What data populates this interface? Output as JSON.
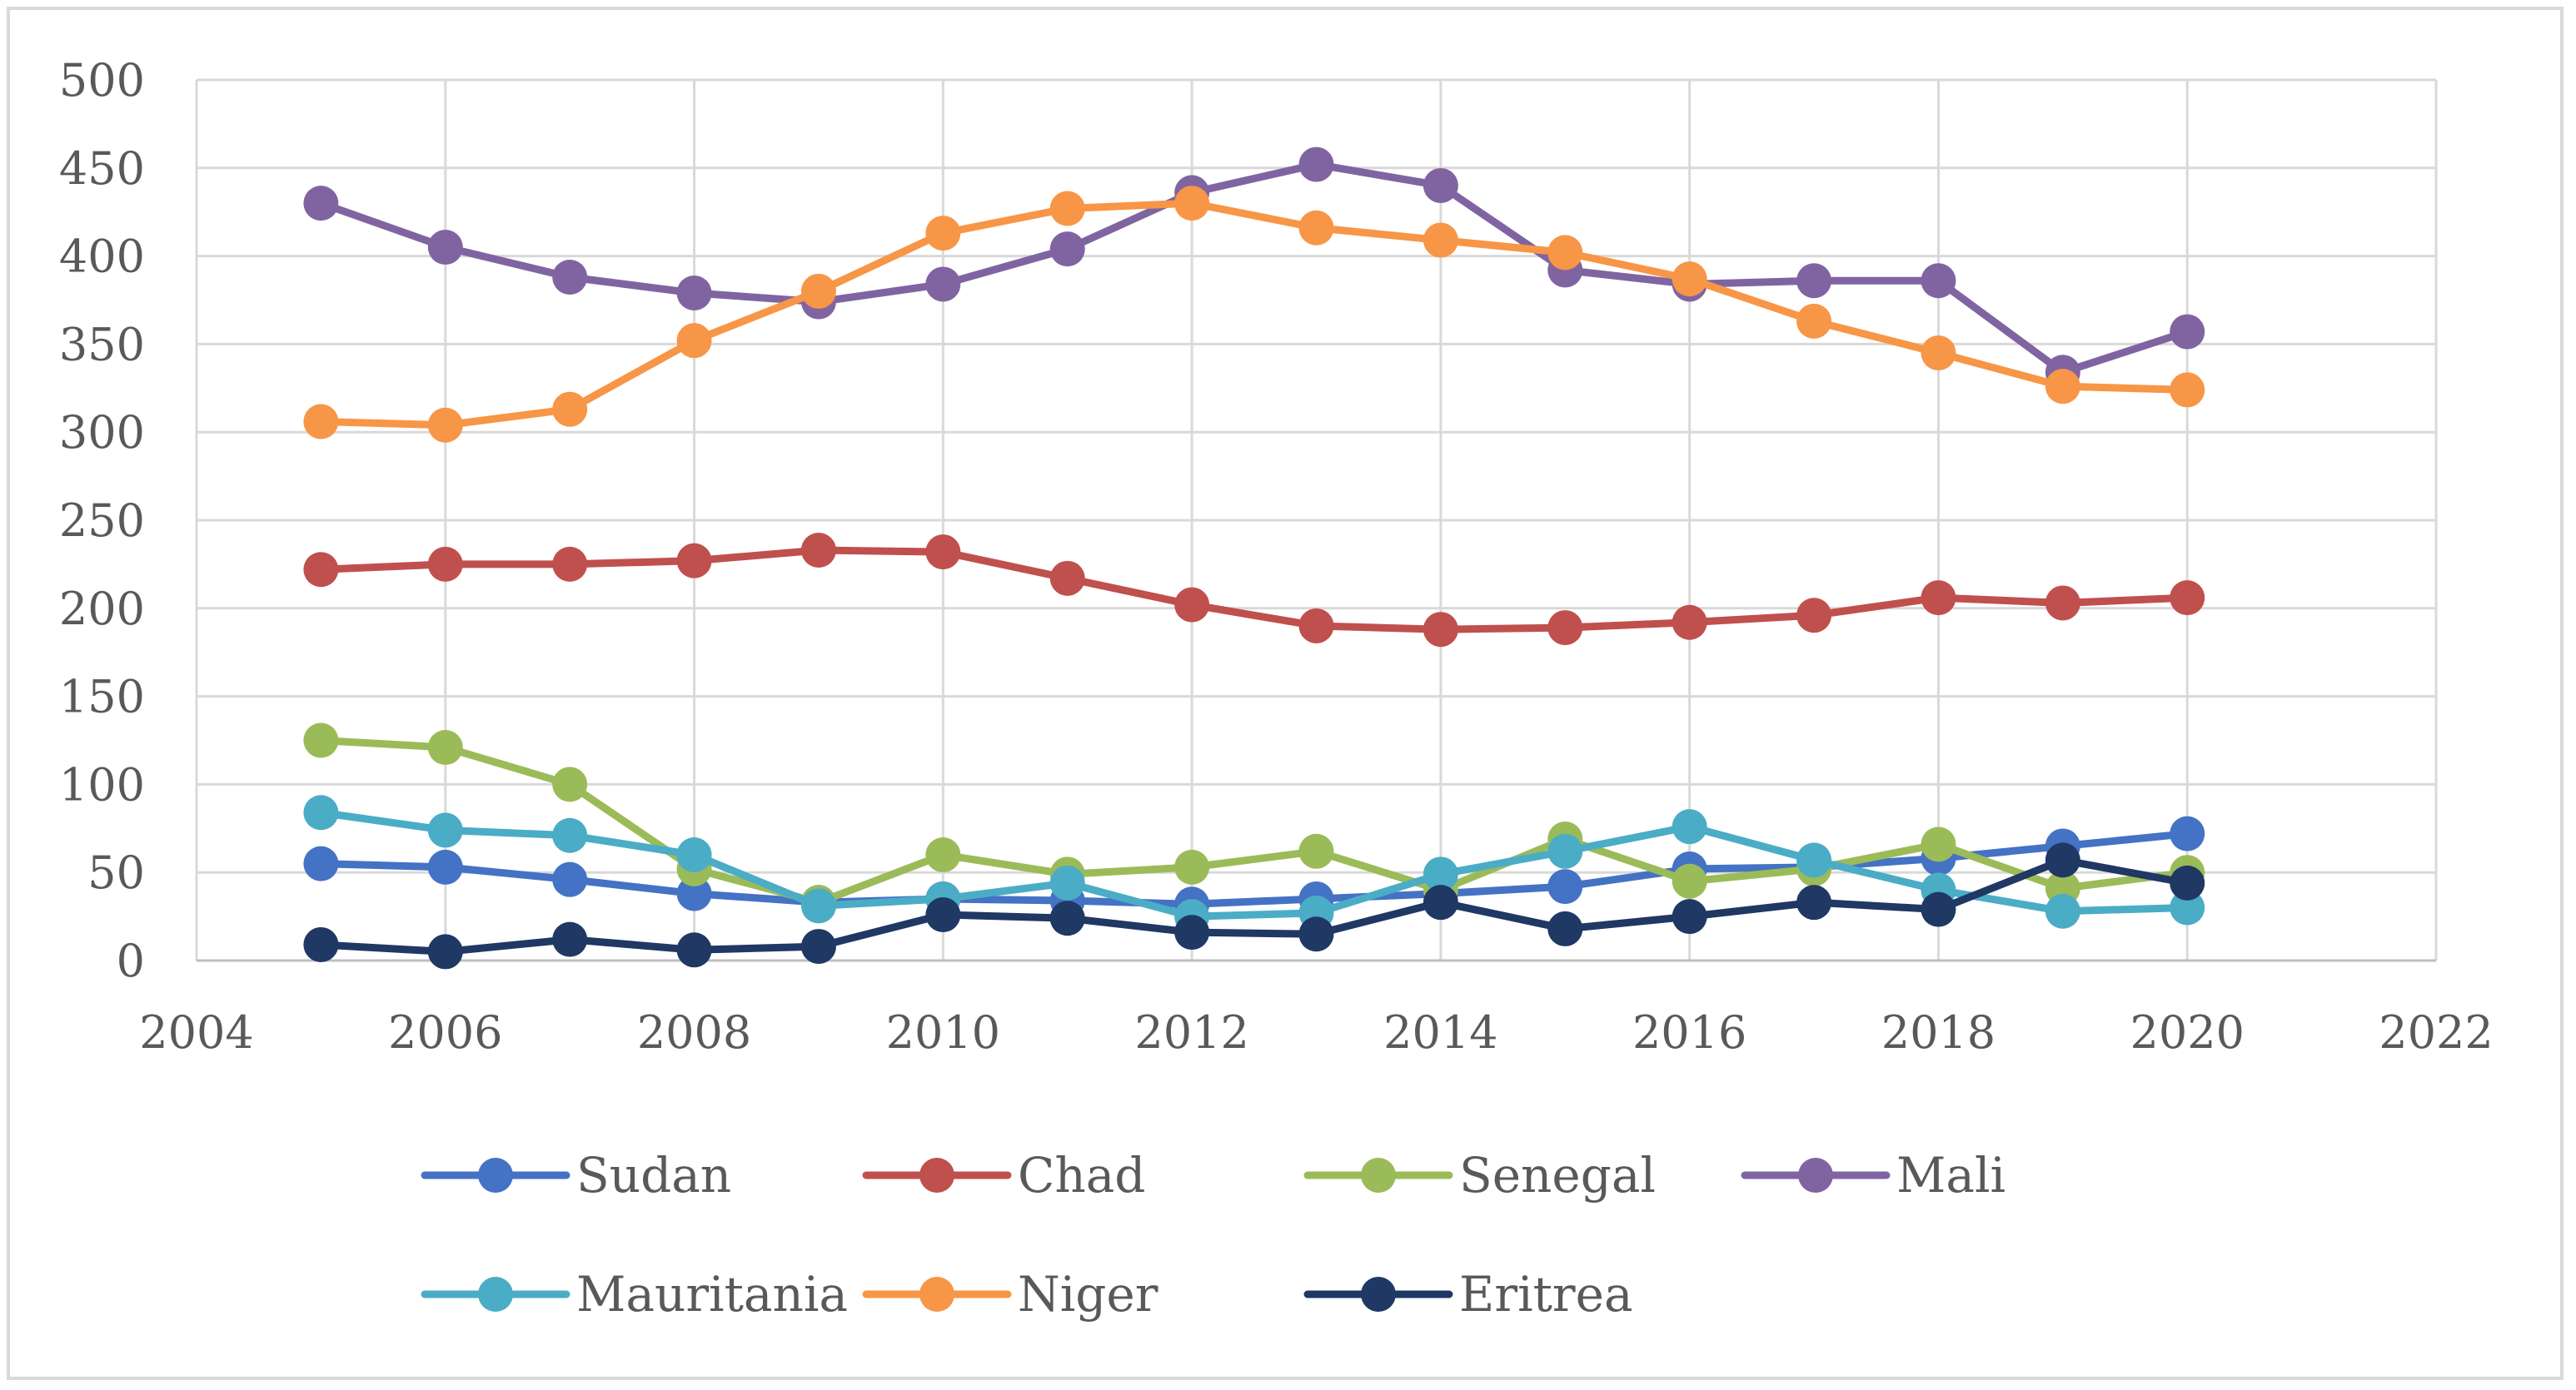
{
  "chart_data": {
    "type": "line",
    "title": "",
    "xlabel": "",
    "ylabel": "",
    "x": [
      2005,
      2006,
      2007,
      2008,
      2009,
      2010,
      2011,
      2012,
      2013,
      2014,
      2015,
      2016,
      2017,
      2018,
      2019,
      2020
    ],
    "xlim": [
      2004,
      2022
    ],
    "ylim": [
      0,
      500
    ],
    "x_ticks": [
      "2004",
      "2006",
      "2008",
      "2010",
      "2012",
      "2014",
      "2016",
      "2018",
      "2020",
      "2022"
    ],
    "y_ticks": [
      "0",
      "50",
      "100",
      "150",
      "200",
      "250",
      "300",
      "350",
      "400",
      "450",
      "500"
    ],
    "grid": true,
    "legend_position": "bottom",
    "series": [
      {
        "name": "Sudan",
        "color": "#4472C4",
        "values": [
          55,
          53,
          46,
          38,
          33,
          35,
          34,
          32,
          35,
          38,
          42,
          52,
          53,
          58,
          65,
          72
        ]
      },
      {
        "name": "Chad",
        "color": "#C0504D",
        "values": [
          222,
          225,
          225,
          227,
          233,
          232,
          217,
          202,
          190,
          188,
          189,
          192,
          196,
          206,
          203,
          206
        ]
      },
      {
        "name": "Senegal",
        "color": "#9BBB59",
        "values": [
          125,
          121,
          100,
          52,
          33,
          60,
          49,
          53,
          62,
          40,
          69,
          45,
          52,
          66,
          41,
          50
        ]
      },
      {
        "name": "Mali",
        "color": "#8064A2",
        "values": [
          430,
          405,
          388,
          379,
          374,
          384,
          404,
          436,
          452,
          440,
          392,
          384,
          386,
          386,
          334,
          357
        ]
      },
      {
        "name": "Mauritania",
        "color": "#4BACC6",
        "values": [
          84,
          74,
          71,
          60,
          31,
          35,
          44,
          25,
          27,
          49,
          62,
          76,
          57,
          40,
          28,
          30
        ]
      },
      {
        "name": "Niger",
        "color": "#F79646",
        "values": [
          306,
          304,
          313,
          352,
          380,
          413,
          427,
          430,
          416,
          409,
          402,
          387,
          363,
          345,
          326,
          324
        ]
      },
      {
        "name": "Eritrea",
        "color": "#1F3864",
        "values": [
          9,
          5,
          12,
          6,
          8,
          26,
          24,
          16,
          15,
          33,
          18,
          25,
          33,
          29,
          57,
          44
        ]
      }
    ]
  }
}
